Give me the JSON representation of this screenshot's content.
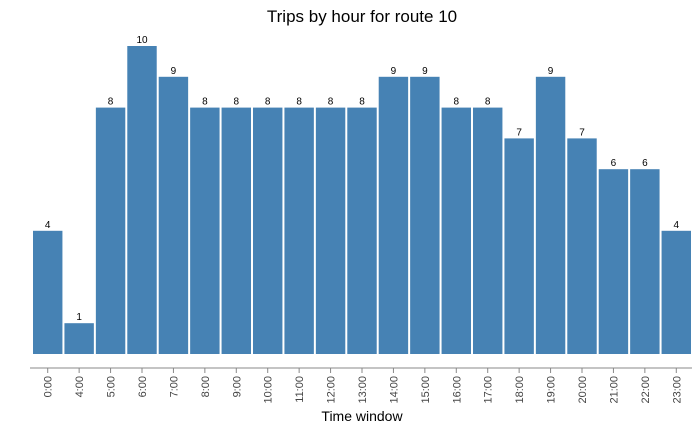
{
  "chart_data": {
    "type": "bar",
    "title": "Trips by hour for route 10",
    "xlabel": "Time window",
    "ylabel": "",
    "categories": [
      "0:00",
      "4:00",
      "5:00",
      "6:00",
      "7:00",
      "8:00",
      "9:00",
      "10:00",
      "11:00",
      "12:00",
      "13:00",
      "14:00",
      "15:00",
      "16:00",
      "17:00",
      "18:00",
      "19:00",
      "20:00",
      "21:00",
      "22:00",
      "23:00"
    ],
    "values": [
      4,
      1,
      8,
      10,
      9,
      8,
      8,
      8,
      8,
      8,
      8,
      9,
      9,
      8,
      8,
      7,
      9,
      7,
      6,
      6,
      4
    ],
    "ylim": [
      0,
      10
    ],
    "grid": false,
    "legend": "none",
    "bar_color": "#4682b4"
  }
}
